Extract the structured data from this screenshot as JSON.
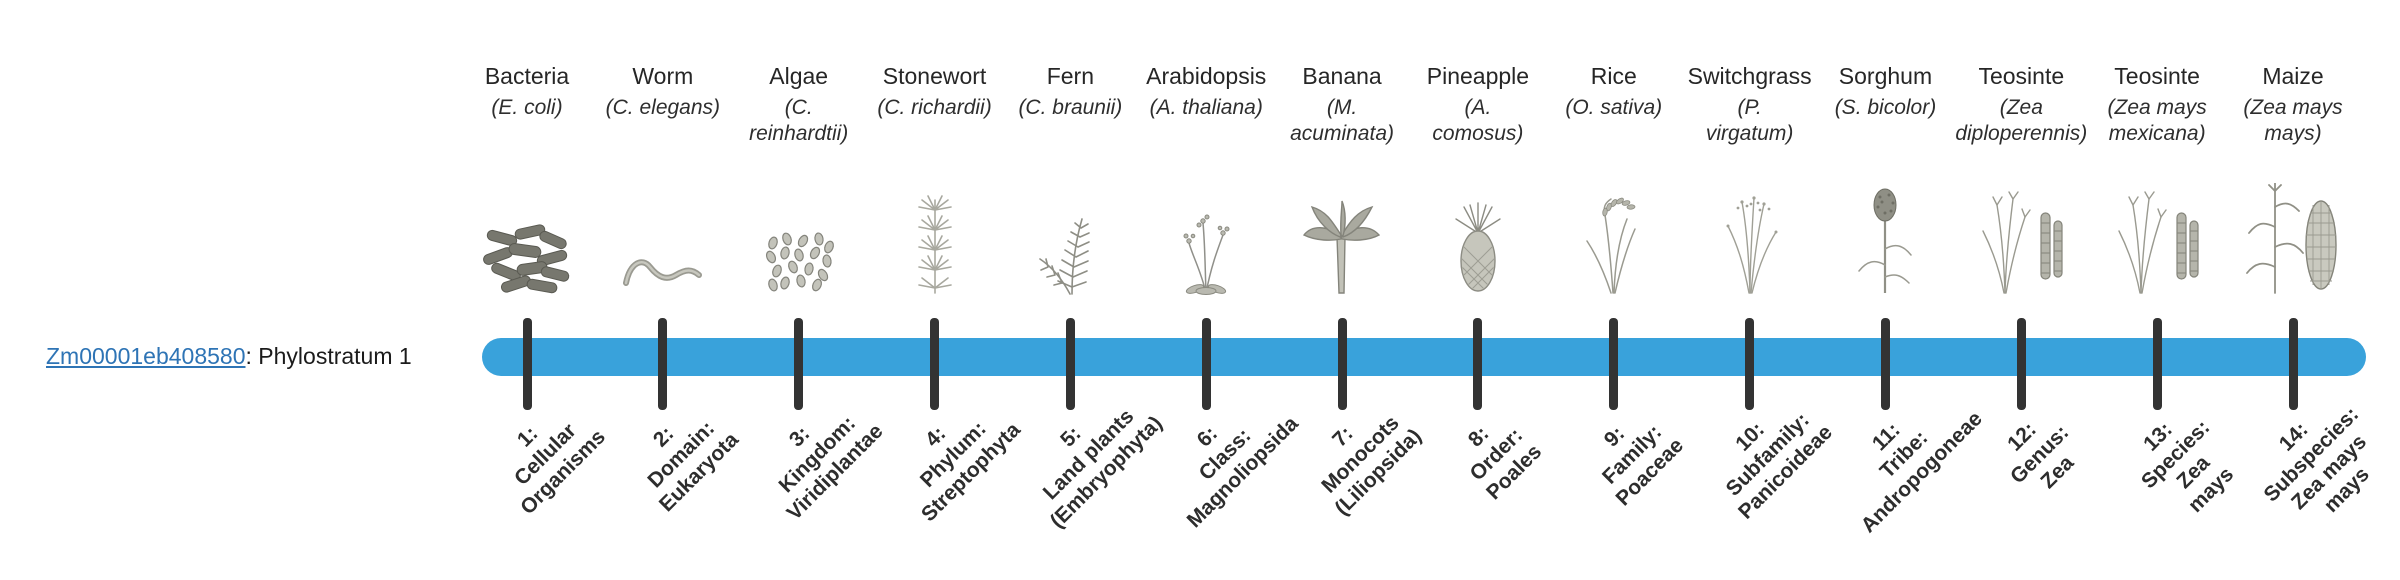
{
  "gene": {
    "id": "Zm00001eb408580",
    "suffix": ": Phylostratum 1"
  },
  "colors": {
    "bar": "#39A2DB",
    "link": "#2E74B5",
    "tick": "#333333"
  },
  "organisms": [
    {
      "name": "Bacteria",
      "sci": "(E. coli)",
      "icon": "bacteria-icon",
      "stratum": "1:\nCellular\nOrganisms"
    },
    {
      "name": "Worm",
      "sci": "(C. elegans)",
      "icon": "worm-icon",
      "stratum": "2:\nDomain:\nEukaryota"
    },
    {
      "name": "Algae",
      "sci": "(C.\nreinhardtii)",
      "icon": "algae-icon",
      "stratum": "3:\nKingdom:\nViridiplantae"
    },
    {
      "name": "Stonewort",
      "sci": "(C. richardii)",
      "icon": "stonewort-icon",
      "stratum": "4:\nPhylum:\nStreptophyta"
    },
    {
      "name": "Fern",
      "sci": "(C. braunii)",
      "icon": "fern-icon",
      "stratum": "5:\nLand plants\n(Embryophyta)"
    },
    {
      "name": "Arabidopsis",
      "sci": "(A. thaliana)",
      "icon": "arabidopsis-icon",
      "stratum": "6:\nClass:\nMagnoliopsida"
    },
    {
      "name": "Banana",
      "sci": "(M.\nacuminata)",
      "icon": "banana-icon",
      "stratum": "7:\nMonocots\n(Liliopsida)"
    },
    {
      "name": "Pineapple",
      "sci": "(A.\ncomosus)",
      "icon": "pineapple-icon",
      "stratum": "8:\nOrder:\nPoales"
    },
    {
      "name": "Rice",
      "sci": "(O. sativa)",
      "icon": "rice-icon",
      "stratum": "9:\nFamily:\nPoaceae"
    },
    {
      "name": "Switchgrass",
      "sci": "(P.\nvirgatum)",
      "icon": "switchgrass-icon",
      "stratum": "10:\nSubfamily:\nPanicoideae"
    },
    {
      "name": "Sorghum",
      "sci": "(S. bicolor)",
      "icon": "sorghum-icon",
      "stratum": "11:\nTribe:\nAndropogoneae"
    },
    {
      "name": "Teosinte",
      "sci": "(Zea\ndiploperennis)",
      "icon": "teosinte-icon",
      "stratum": "12:\nGenus:\nZea"
    },
    {
      "name": "Teosinte",
      "sci": "(Zea mays\nmexicana)",
      "icon": "teosinte-icon",
      "stratum": "13:\nSpecies:\nZea\nmays"
    },
    {
      "name": "Maize",
      "sci": "(Zea mays\nmays)",
      "icon": "maize-icon",
      "stratum": "14:\nSubspecies:\nZea mays\nmays"
    }
  ]
}
